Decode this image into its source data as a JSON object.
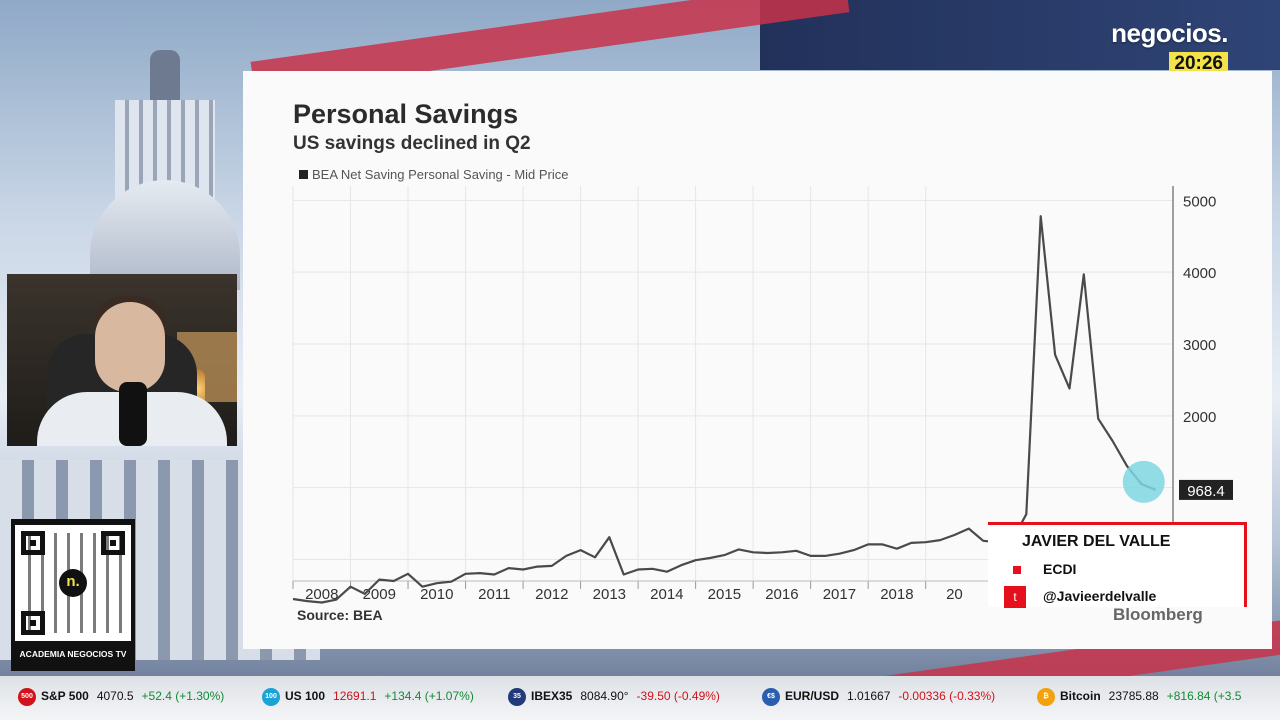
{
  "brand": {
    "logo_text": "negocios.",
    "time": "20:26"
  },
  "chart_data": {
    "type": "line",
    "title": "Personal Savings",
    "subtitle": "US savings declined in Q2",
    "legend": [
      "BEA Net Saving Personal Saving - Mid Price"
    ],
    "source": "Source: BEA",
    "watermark": "Bloomberg",
    "x_tick_labels": [
      "2008",
      "2009",
      "2010",
      "2011",
      "2012",
      "2013",
      "2014",
      "2015",
      "2016",
      "2017",
      "2018",
      "20"
    ],
    "y_tick_labels": [
      "5000",
      "4000",
      "3000",
      "2000"
    ],
    "ylim": [
      -300,
      5200
    ],
    "xlim": [
      2007.5,
      2022.8
    ],
    "last_value_label": "968.4",
    "series": [
      {
        "name": "BEA Net Saving Personal Saving - Mid Price",
        "points": [
          [
            2007.5,
            -550
          ],
          [
            2007.75,
            -580
          ],
          [
            2008.0,
            -600
          ],
          [
            2008.25,
            -560
          ],
          [
            2008.5,
            -380
          ],
          [
            2008.75,
            -480
          ],
          [
            2009.0,
            -280
          ],
          [
            2009.25,
            -300
          ],
          [
            2009.5,
            -200
          ],
          [
            2009.75,
            -380
          ],
          [
            2010.0,
            -330
          ],
          [
            2010.25,
            -310
          ],
          [
            2010.5,
            -200
          ],
          [
            2010.75,
            -190
          ],
          [
            2011.0,
            -210
          ],
          [
            2011.25,
            -120
          ],
          [
            2011.5,
            -140
          ],
          [
            2011.75,
            -100
          ],
          [
            2012.0,
            -90
          ],
          [
            2012.25,
            50
          ],
          [
            2012.5,
            130
          ],
          [
            2012.75,
            30
          ],
          [
            2013.0,
            310
          ],
          [
            2013.25,
            -210
          ],
          [
            2013.5,
            -140
          ],
          [
            2013.75,
            -130
          ],
          [
            2014.0,
            -170
          ],
          [
            2014.25,
            -80
          ],
          [
            2014.5,
            -10
          ],
          [
            2014.75,
            20
          ],
          [
            2015.0,
            60
          ],
          [
            2015.25,
            140
          ],
          [
            2015.5,
            100
          ],
          [
            2015.75,
            90
          ],
          [
            2016.0,
            100
          ],
          [
            2016.25,
            120
          ],
          [
            2016.5,
            50
          ],
          [
            2016.75,
            50
          ],
          [
            2017.0,
            80
          ],
          [
            2017.25,
            130
          ],
          [
            2017.5,
            210
          ],
          [
            2017.75,
            210
          ],
          [
            2018.0,
            150
          ],
          [
            2018.25,
            230
          ],
          [
            2018.5,
            240
          ],
          [
            2018.75,
            270
          ],
          [
            2019.0,
            340
          ],
          [
            2019.25,
            430
          ],
          [
            2019.5,
            260
          ],
          [
            2019.75,
            240
          ],
          [
            2020.0,
            260
          ],
          [
            2020.25,
            630
          ],
          [
            2020.5,
            4780
          ],
          [
            2020.75,
            2850
          ],
          [
            2021.0,
            2380
          ],
          [
            2021.25,
            3970
          ],
          [
            2021.5,
            1960
          ],
          [
            2021.75,
            1650
          ],
          [
            2022.0,
            1300
          ],
          [
            2022.25,
            1050
          ],
          [
            2022.5,
            968.4
          ]
        ]
      }
    ]
  },
  "host": {
    "name": "JAVIER DEL VALLE",
    "org": "ECDI",
    "twitter": "@Javieerdelvalle",
    "twitter_icon": "t"
  },
  "qr": {
    "label": "ACADEMIA NEGOCIOS TV",
    "logo": "n."
  },
  "ticker": [
    {
      "badge": "500",
      "color": "#d0121b",
      "name": "S&P 500",
      "price": "4070.5",
      "change": "+52.4 (+1.30%)",
      "dir": "up"
    },
    {
      "badge": "100",
      "color": "#1ba3d6",
      "name": "US 100",
      "price": "12691.1",
      "change": "+134.4 (+1.07%)",
      "dir": "up",
      "price_dir": "down"
    },
    {
      "badge": "35",
      "color": "#233a7a",
      "name": "IBEX35",
      "price": "8084.90°",
      "change": "-39.50 (-0.49%)",
      "dir": "down"
    },
    {
      "badge": "€$",
      "color": "#2a5fb0",
      "name": "EUR/USD",
      "price": "1.01667",
      "change": "-0.00336 (-0.33%)",
      "dir": "down"
    },
    {
      "badge": "₿",
      "color": "#f2a20c",
      "name": "Bitcoin",
      "price": "23785.88",
      "change": "+816.84 (+3.5",
      "dir": "up"
    }
  ]
}
